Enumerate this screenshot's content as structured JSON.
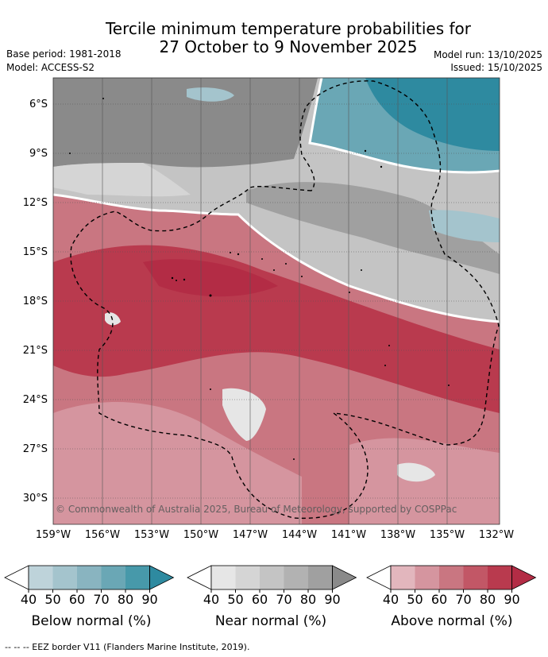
{
  "header": {
    "title_line1": "Tercile minimum temperature probabilities for",
    "title_line2": "27 October to 9 November 2025",
    "base_period": "Base period: 1981-2018",
    "model": "Model: ACCESS-S2",
    "model_run": "Model run: 13/10/2025",
    "issued": "Issued: 15/10/2025"
  },
  "map": {
    "lat_labels": [
      "6°S",
      "9°S",
      "12°S",
      "15°S",
      "18°S",
      "21°S",
      "24°S",
      "27°S",
      "30°S"
    ],
    "lon_labels": [
      "159°W",
      "156°W",
      "153°W",
      "150°W",
      "147°W",
      "144°W",
      "141°W",
      "138°W",
      "135°W",
      "132°W"
    ],
    "copyright": "© Commonwealth of Australia 2025, Bureau of Meteorology, supported by COSPPac",
    "regions": {
      "below_normal": "northeast",
      "near_normal": "north",
      "above_normal": "south"
    }
  },
  "legend": {
    "ticks": [
      "40",
      "50",
      "60",
      "70",
      "80",
      "90"
    ],
    "below": {
      "label": "Below normal (%)",
      "colors": [
        "#ffffff",
        "#bed3da",
        "#a4c4cd",
        "#89b4c0",
        "#6aa7b5",
        "#4799aa",
        "#2e8aa0"
      ]
    },
    "near": {
      "label": "Near normal (%)",
      "colors": [
        "#ffffff",
        "#e6e6e6",
        "#d5d5d5",
        "#c4c4c4",
        "#b2b2b2",
        "#a0a0a0",
        "#8a8a8a"
      ]
    },
    "above": {
      "label": "Above normal (%)",
      "colors": [
        "#ffffff",
        "#e2b6bd",
        "#d5959f",
        "#c97681",
        "#c25766",
        "#b93a4e",
        "#b32c45"
      ]
    }
  },
  "footnote": "--  --  -- EEZ border V11 (Flanders Marine Institute, 2019)."
}
